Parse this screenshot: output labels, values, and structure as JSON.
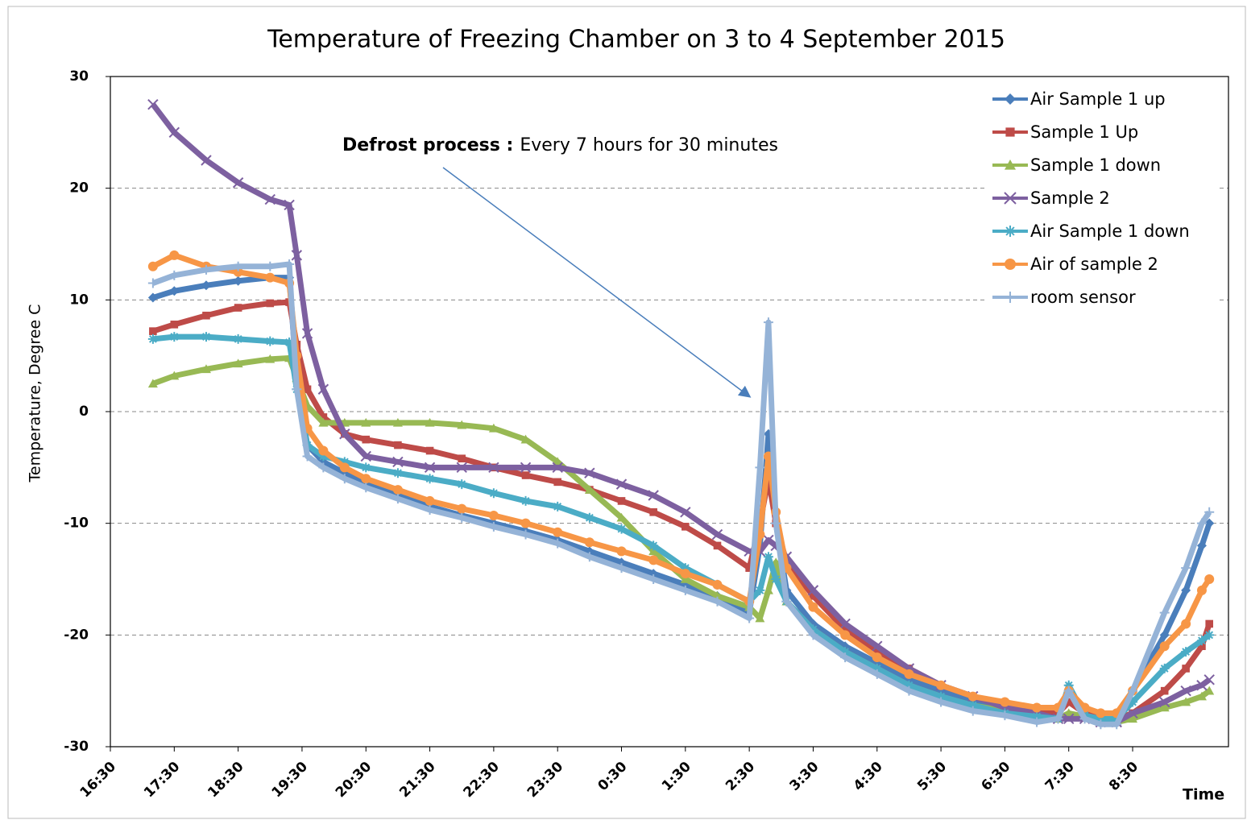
{
  "chart_data": {
    "type": "line",
    "title": "Temperature of  Freezing Chamber on 3 to 4  September 2015",
    "y_label": "Temperature,  Degree C",
    "x_label": "Time",
    "annotation": {
      "bold": "Defrost  process :",
      "text": "Every  7  hours  for 30 minutes"
    },
    "x": [
      "17:10",
      "17:30",
      "18:00",
      "18:30",
      "19:00",
      "19:18",
      "19:25",
      "19:35",
      "19:50",
      "20:10",
      "20:30",
      "21:00",
      "21:30",
      "22:00",
      "22:30",
      "23:00",
      "23:30",
      "0:00",
      "0:30",
      "1:00",
      "1:30",
      "2:00",
      "2:30",
      "2:40",
      "2:48",
      "2:55",
      "3:05",
      "3:30",
      "4:00",
      "4:30",
      "5:00",
      "5:30",
      "6:00",
      "6:30",
      "7:00",
      "7:20",
      "7:30",
      "7:45",
      "8:00",
      "8:15",
      "8:30",
      "9:00",
      "9:20",
      "9:35",
      "9:42"
    ],
    "xlim": [
      "16:30",
      "10:00"
    ],
    "xticks": [
      "16:30",
      "17:30",
      "18:30",
      "19:30",
      "20:30",
      "21:30",
      "22:30",
      "23:30",
      "0:30",
      "1:30",
      "2:30",
      "3:30",
      "4:30",
      "5:30",
      "6:30",
      "7:30",
      "8:30"
    ],
    "ylim": [
      -30,
      30
    ],
    "yticks": [
      -30,
      -20,
      -10,
      0,
      10,
      20,
      30
    ],
    "grid": true,
    "legend": "top-right",
    "series": [
      {
        "name": "Air Sample 1 up",
        "color": "#4a7ebb",
        "marker": "diamond",
        "values": [
          10.2,
          10.8,
          11.3,
          11.7,
          12,
          12,
          3,
          -3,
          -4.5,
          -5.5,
          -6.5,
          -7.5,
          -8.5,
          -9.3,
          -10,
          -10.7,
          -11.5,
          -12.5,
          -13.5,
          -14.5,
          -15.5,
          -16.5,
          -18,
          -12,
          -2,
          -10,
          -16,
          -19,
          -21,
          -22.5,
          -24,
          -25,
          -26,
          -26.5,
          -27,
          -27.3,
          -25,
          -27,
          -27.5,
          -27.5,
          -25,
          -20,
          -16,
          -12,
          -10
        ]
      },
      {
        "name": "Sample 1 Up",
        "color": "#be4b48",
        "marker": "square",
        "values": [
          7.2,
          7.8,
          8.6,
          9.3,
          9.7,
          9.8,
          6,
          2,
          -0.5,
          -2,
          -2.5,
          -3,
          -3.5,
          -4.2,
          -5,
          -5.7,
          -6.3,
          -7,
          -8,
          -9,
          -10.3,
          -12,
          -14,
          -10,
          -6,
          -10,
          -13.5,
          -16.5,
          -19.5,
          -21.5,
          -23,
          -24.5,
          -25.5,
          -26.3,
          -27,
          -27,
          -26,
          -27,
          -27.5,
          -27.5,
          -27,
          -25,
          -23,
          -21,
          -19
        ]
      },
      {
        "name": "Sample 1 down",
        "color": "#98b954",
        "marker": "triangle",
        "values": [
          2.5,
          3.2,
          3.8,
          4.3,
          4.7,
          4.8,
          3,
          0.5,
          -1,
          -1,
          -1,
          -1,
          -1,
          -1.2,
          -1.5,
          -2.5,
          -4.5,
          -7,
          -9.5,
          -12.5,
          -15,
          -16.5,
          -17.5,
          -18.5,
          -16,
          -13.5,
          -17,
          -19.5,
          -21.5,
          -23,
          -24.5,
          -25.5,
          -26.3,
          -26.8,
          -27.3,
          -27.5,
          -27,
          -27.3,
          -27.8,
          -27.8,
          -27.5,
          -26.5,
          -26,
          -25.5,
          -25
        ]
      },
      {
        "name": "Sample 2",
        "color": "#7d60a0",
        "marker": "x",
        "values": [
          27.5,
          25,
          22.5,
          20.5,
          19,
          18.5,
          14,
          7,
          2,
          -2,
          -4,
          -4.5,
          -5,
          -5,
          -5,
          -5,
          -5,
          -5.5,
          -6.5,
          -7.5,
          -9,
          -11,
          -12.5,
          -12.5,
          -11.5,
          -12,
          -13,
          -16,
          -19,
          -21,
          -23,
          -24.5,
          -25.5,
          -26.5,
          -27,
          -27.5,
          -27.5,
          -27.5,
          -27.8,
          -27.8,
          -27,
          -26,
          -25,
          -24.5,
          -24
        ]
      },
      {
        "name": "Air Sample 1 down",
        "color": "#4bacc6",
        "marker": "star",
        "values": [
          6.5,
          6.7,
          6.7,
          6.5,
          6.3,
          6.2,
          2,
          -3,
          -4,
          -4.5,
          -5,
          -5.5,
          -6,
          -6.5,
          -7.3,
          -8,
          -8.5,
          -9.5,
          -10.5,
          -12,
          -14,
          -15.5,
          -17,
          -16,
          -13,
          -15,
          -17,
          -19.5,
          -21.5,
          -23,
          -24.5,
          -25.5,
          -26.3,
          -27,
          -27.3,
          -27.5,
          -24.5,
          -27.2,
          -27.5,
          -27.5,
          -26,
          -23,
          -21.5,
          -20.5,
          -20
        ]
      },
      {
        "name": "Air of sample 2",
        "color": "#f79646",
        "marker": "circle",
        "values": [
          13,
          14,
          13,
          12.5,
          12,
          11.5,
          5,
          -1.5,
          -3.5,
          -5,
          -6,
          -7,
          -8,
          -8.7,
          -9.3,
          -10,
          -10.8,
          -11.7,
          -12.5,
          -13.3,
          -14.5,
          -15.5,
          -17,
          -11,
          -4,
          -9,
          -14,
          -17.5,
          -20,
          -22,
          -23.5,
          -24.5,
          -25.5,
          -26,
          -26.5,
          -26.5,
          -25,
          -26.5,
          -27,
          -27,
          -25,
          -21,
          -19,
          -16,
          -15
        ]
      },
      {
        "name": "room sensor",
        "color": "#95b3d7",
        "marker": "plus",
        "values": [
          11.5,
          12.2,
          12.7,
          13,
          13,
          13.2,
          2,
          -4,
          -5,
          -6,
          -6.8,
          -7.8,
          -8.8,
          -9.5,
          -10.3,
          -11,
          -11.8,
          -13,
          -14,
          -15,
          -16,
          -17,
          -18.5,
          -5,
          8,
          -10,
          -17,
          -20,
          -22,
          -23.5,
          -25,
          -26,
          -26.8,
          -27.2,
          -27.8,
          -27.5,
          -25,
          -27.5,
          -28,
          -28,
          -25,
          -18,
          -14,
          -10,
          -9
        ]
      }
    ]
  }
}
